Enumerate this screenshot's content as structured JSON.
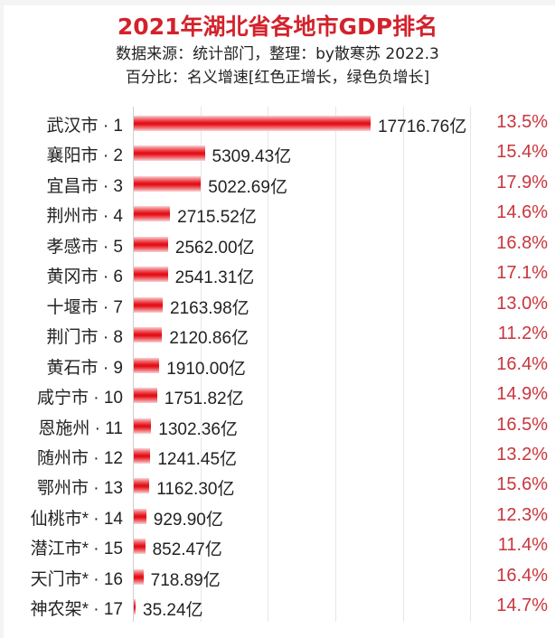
{
  "header": {
    "title": "2021年湖北省各地市GDP排名",
    "source_line": "数据来源：统计部门，整理：by散寒苏 2022.3",
    "legend_line": "百分比：名义增速[红色正增长，绿色负增长]"
  },
  "colors": {
    "title": "#d3222b",
    "bar": "#e30d14",
    "positive_growth": "#c9353c",
    "negative_growth": "#2e9b3e"
  },
  "chart_data": {
    "type": "bar",
    "orientation": "horizontal",
    "title": "2021年湖北省各地市GDP排名",
    "subtitle": "数据来源：统计部门，整理：by散寒苏 2022.3 / 百分比：名义增速[红色正增长，绿色负增长]",
    "xlabel": "",
    "ylabel": "",
    "unit": "亿",
    "grid": true,
    "legend": null,
    "categories": [
      "武汉市 · 1",
      "襄阳市 · 2",
      "宜昌市 · 3",
      "荆州市 · 4",
      "孝感市 · 5",
      "黄冈市 · 6",
      "十堰市 · 7",
      "荆门市 · 8",
      "黄石市 · 9",
      "咸宁市 · 10",
      "恩施州 · 11",
      "随州市 · 12",
      "鄂州市 · 13",
      "仙桃市* · 14",
      "潜江市* · 15",
      "天门市* · 16",
      "神农架* · 17"
    ],
    "series": [
      {
        "name": "GDP(亿)",
        "values": [
          17716.76,
          5309.43,
          5022.69,
          2715.52,
          2562.0,
          2541.31,
          2163.98,
          2120.86,
          1910.0,
          1751.82,
          1302.36,
          1241.45,
          1162.3,
          929.9,
          852.47,
          718.89,
          35.24
        ]
      },
      {
        "name": "名义增速(%)",
        "values": [
          13.5,
          15.4,
          17.9,
          14.6,
          16.8,
          17.1,
          13.0,
          11.2,
          16.4,
          14.9,
          16.5,
          13.2,
          15.6,
          12.3,
          11.4,
          16.4,
          14.7
        ]
      }
    ]
  },
  "rows": [
    {
      "label": "武汉市 · 1",
      "value": "17716.76亿",
      "gdp": 17716.76,
      "pct": "13.5%"
    },
    {
      "label": "襄阳市 · 2",
      "value": "5309.43亿",
      "gdp": 5309.43,
      "pct": "15.4%"
    },
    {
      "label": "宜昌市 · 3",
      "value": "5022.69亿",
      "gdp": 5022.69,
      "pct": "17.9%"
    },
    {
      "label": "荆州市 · 4",
      "value": "2715.52亿",
      "gdp": 2715.52,
      "pct": "14.6%"
    },
    {
      "label": "孝感市 · 5",
      "value": "2562.00亿",
      "gdp": 2562.0,
      "pct": "16.8%"
    },
    {
      "label": "黄冈市 · 6",
      "value": "2541.31亿",
      "gdp": 2541.31,
      "pct": "17.1%"
    },
    {
      "label": "十堰市 · 7",
      "value": "2163.98亿",
      "gdp": 2163.98,
      "pct": "13.0%"
    },
    {
      "label": "荆门市 · 8",
      "value": "2120.86亿",
      "gdp": 2120.86,
      "pct": "11.2%"
    },
    {
      "label": "黄石市 · 9",
      "value": "1910.00亿",
      "gdp": 1910.0,
      "pct": "16.4%"
    },
    {
      "label": "咸宁市 · 10",
      "value": "1751.82亿",
      "gdp": 1751.82,
      "pct": "14.9%"
    },
    {
      "label": "恩施州 · 11",
      "value": "1302.36亿",
      "gdp": 1302.36,
      "pct": "16.5%"
    },
    {
      "label": "随州市 · 12",
      "value": "1241.45亿",
      "gdp": 1241.45,
      "pct": "13.2%"
    },
    {
      "label": "鄂州市 · 13",
      "value": "1162.30亿",
      "gdp": 1162.3,
      "pct": "15.6%"
    },
    {
      "label": "仙桃市* · 14",
      "value": "929.90亿",
      "gdp": 929.9,
      "pct": "12.3%"
    },
    {
      "label": "潜江市* · 15",
      "value": "852.47亿",
      "gdp": 852.47,
      "pct": "11.4%"
    },
    {
      "label": "天门市* · 16",
      "value": "718.89亿",
      "gdp": 718.89,
      "pct": "16.4%"
    },
    {
      "label": "神农架* · 17",
      "value": "35.24亿",
      "gdp": 35.24,
      "pct": "14.7%"
    }
  ]
}
